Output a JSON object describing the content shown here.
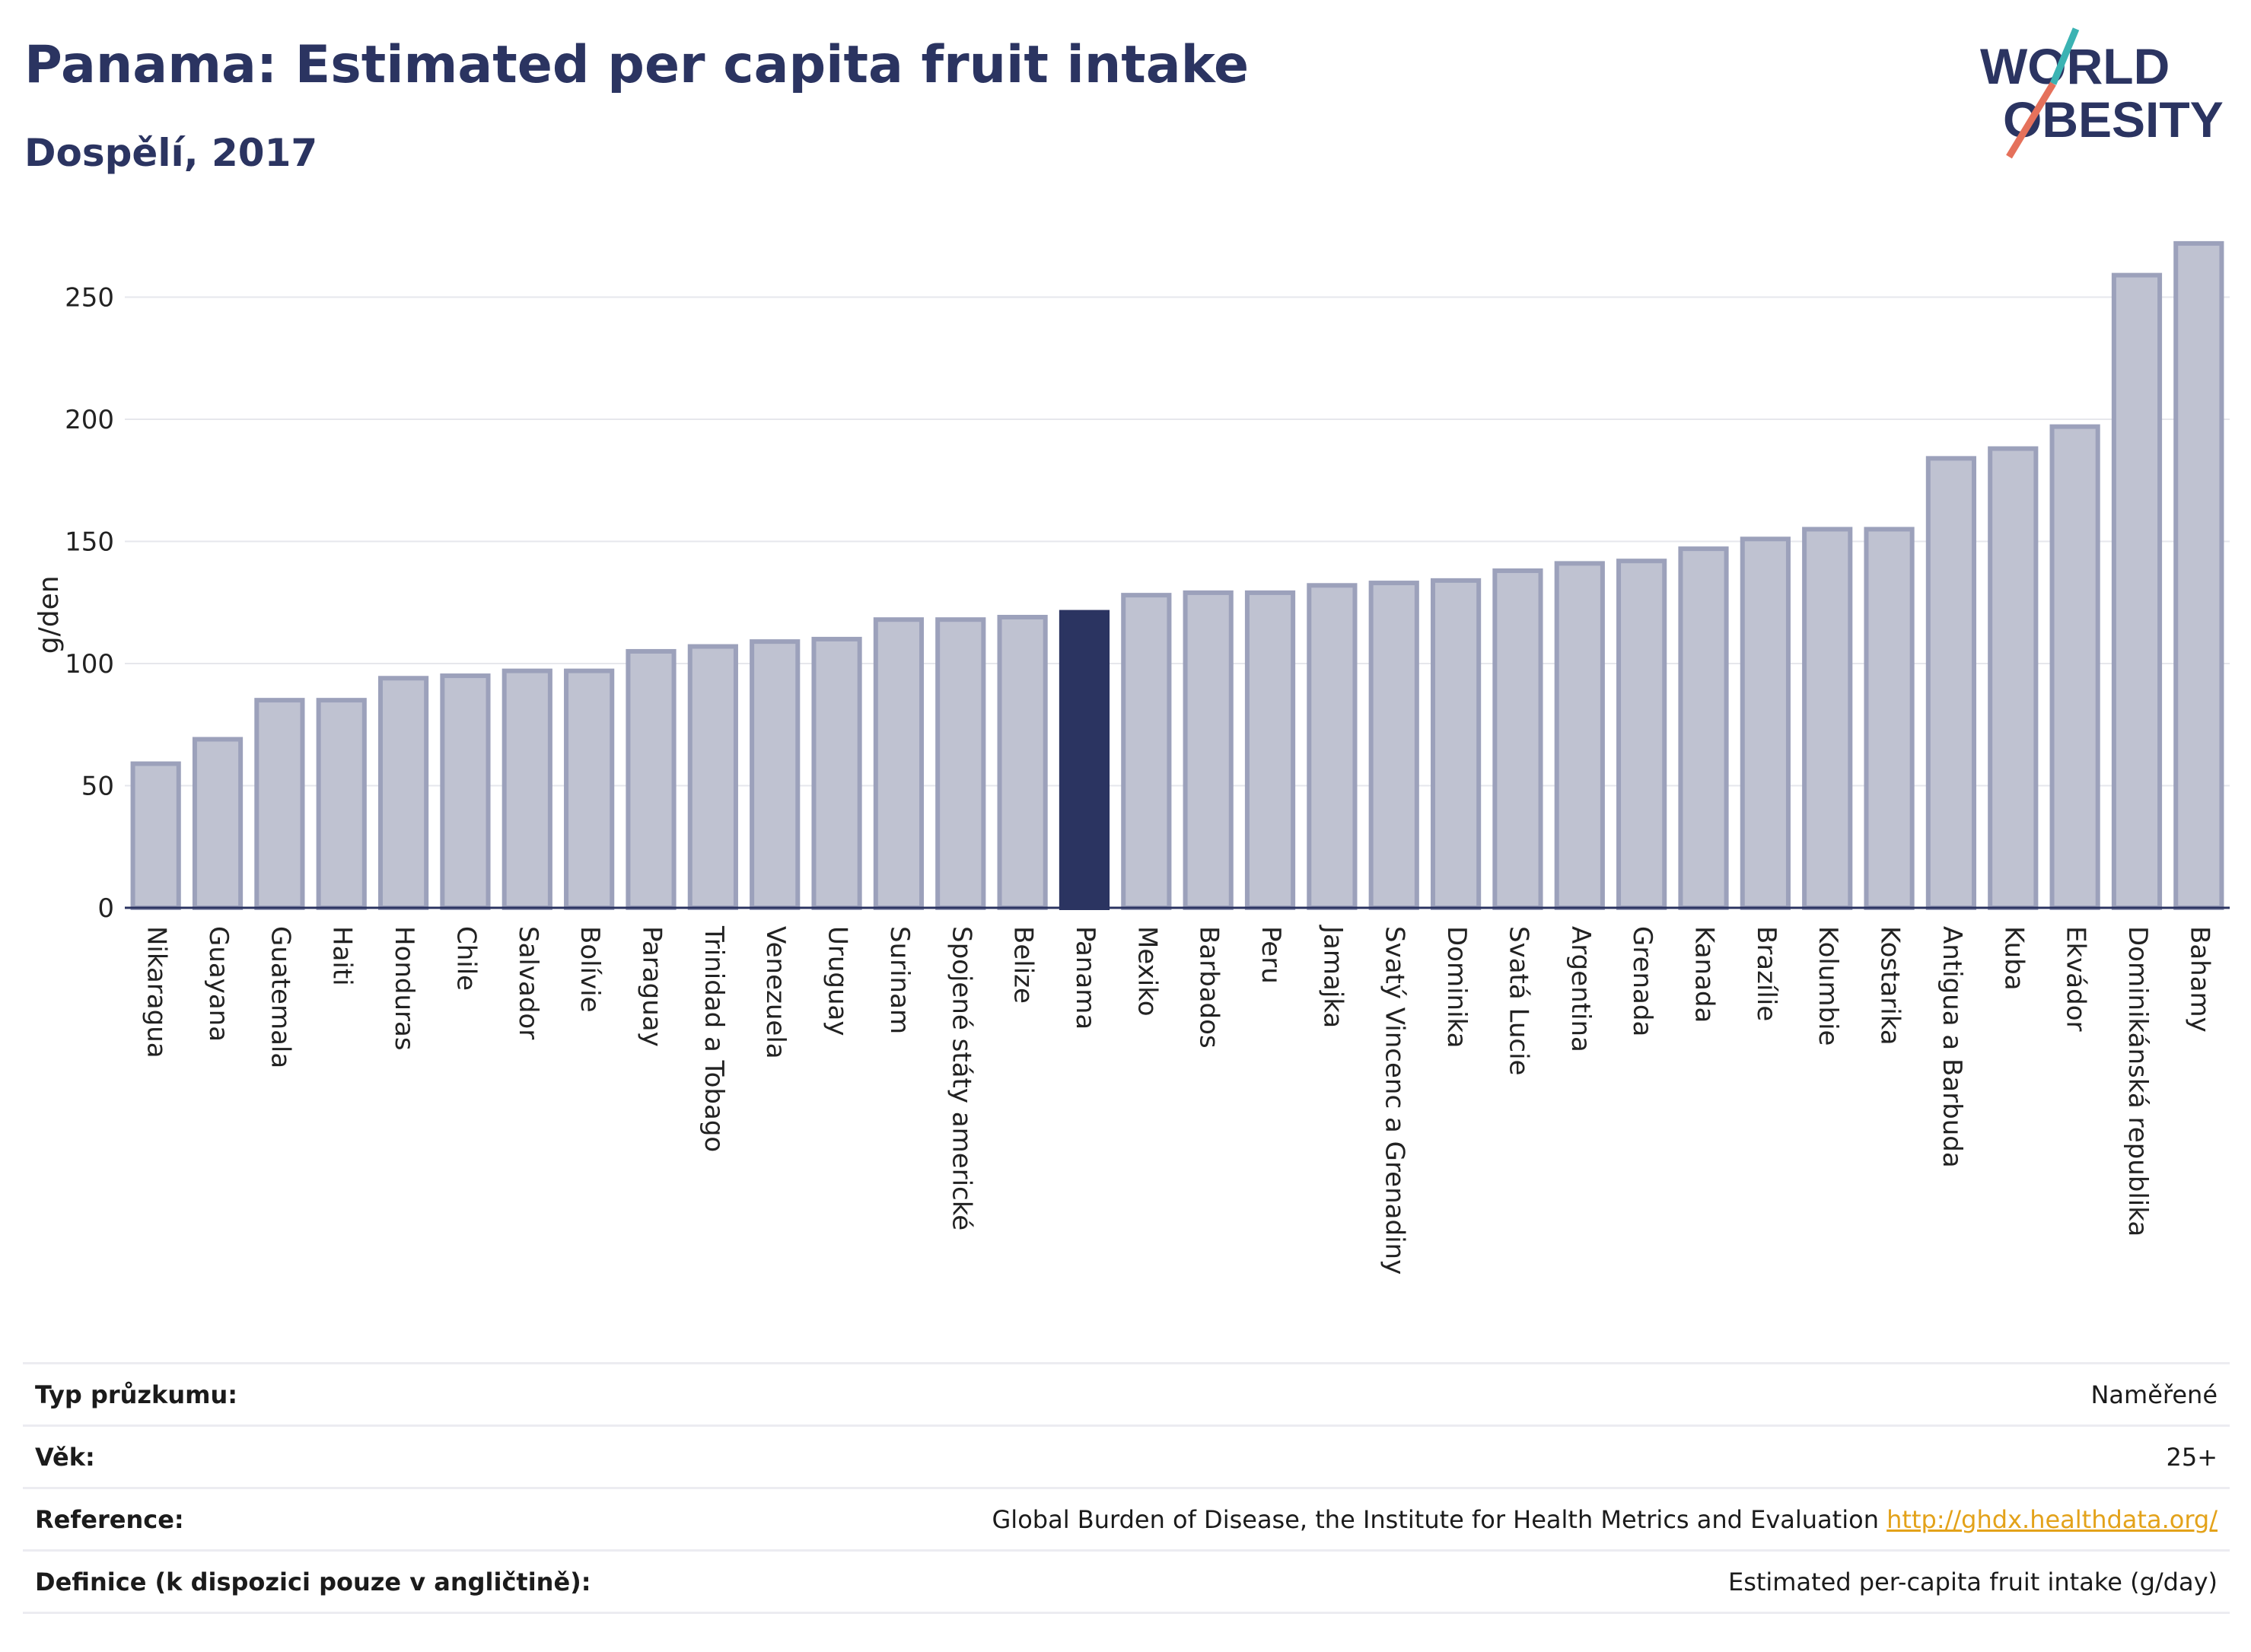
{
  "header": {
    "title": "Panama: Estimated per capita fruit intake",
    "subtitle": "Dospělí, 2017"
  },
  "logo": {
    "line1": "WORLD",
    "line2": "OBESITY"
  },
  "colors": {
    "bar": "#bfc2d1",
    "bar_stroke": "#9ca1bb",
    "highlight": "#2b3461",
    "grid": "#e6e7ec",
    "axis": "#2b3461"
  },
  "chart_data": {
    "type": "bar",
    "ylabel": "g/den",
    "ylim": [
      0,
      280
    ],
    "yticks": [
      0,
      50,
      100,
      150,
      200,
      250
    ],
    "highlight": "Panama",
    "categories": [
      "Nikaragua",
      "Guayana",
      "Guatemala",
      "Haiti",
      "Honduras",
      "Chile",
      "Salvador",
      "Bolívie",
      "Paraguay",
      "Trinidad a Tobago",
      "Venezuela",
      "Uruguay",
      "Surinam",
      "Spojené státy americké",
      "Belize",
      "Panama",
      "Mexiko",
      "Barbados",
      "Peru",
      "Jamajka",
      "Svatý Vincenc a Grenadiny",
      "Dominika",
      "Svatá Lucie",
      "Argentina",
      "Grenada",
      "Kanada",
      "Brazílie",
      "Kolumbie",
      "Kostarika",
      "Antigua a Barbuda",
      "Kuba",
      "Ekvádor",
      "Dominikánská republika",
      "Bahamy"
    ],
    "values": [
      59,
      69,
      85,
      85,
      94,
      95,
      97,
      97,
      105,
      107,
      109,
      110,
      118,
      118,
      119,
      121,
      128,
      129,
      129,
      132,
      133,
      134,
      138,
      141,
      142,
      147,
      151,
      155,
      155,
      184,
      188,
      197,
      259,
      272
    ]
  },
  "info": {
    "survey_label": "Typ průzkumu:",
    "survey_value": "Naměřené",
    "age_label": "Věk:",
    "age_value": "25+",
    "ref_label": "Reference:",
    "ref_value": "Global Burden of Disease, the Institute for Health Metrics and Evaluation",
    "ref_link": "http://ghdx.healthdata.org/",
    "def_label": "Definice (k dispozici pouze v angličtině):",
    "def_value": "Estimated per-capita fruit intake (g/day)"
  }
}
